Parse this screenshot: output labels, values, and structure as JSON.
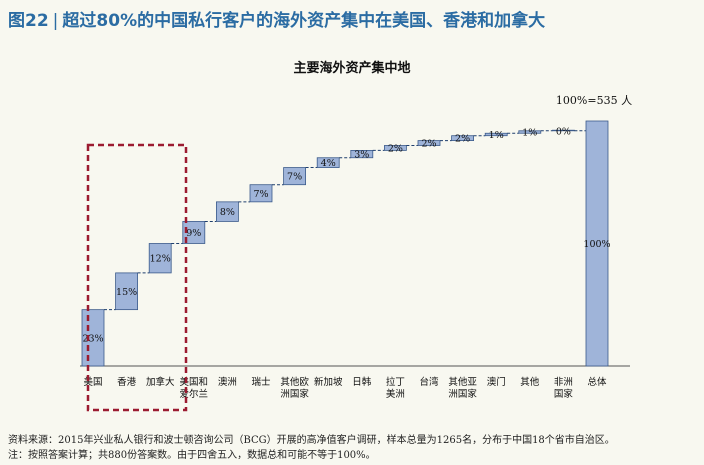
{
  "figure": {
    "number": "图22",
    "heading": "超过80%的中国私行客户的海外资产集中在美国、香港和加拿大"
  },
  "chart_data": {
    "type": "bar",
    "subtype": "waterfall",
    "title": "主要海外资产集中地",
    "total_label": "100%=535 人",
    "categories": [
      "美国",
      "香港",
      "加拿大",
      "美国和\n爱尔兰",
      "澳洲",
      "瑞士",
      "其他欧\n洲国家",
      "新加坡",
      "日韩",
      "拉丁\n美洲",
      "台湾",
      "其他亚\n洲国家",
      "澳门",
      "其他",
      "非洲\n国家",
      "总体"
    ],
    "values": [
      23,
      15,
      12,
      9,
      8,
      7,
      7,
      4,
      3,
      2,
      2,
      2,
      1,
      1,
      0,
      100
    ],
    "value_labels": [
      "23%",
      "15%",
      "12%",
      "9%",
      "8%",
      "7%",
      "7%",
      "4%",
      "3%",
      "2%",
      "2%",
      "2%",
      "1%",
      "1%",
      "0%",
      "100%"
    ],
    "ylim": [
      0,
      100
    ],
    "highlight": {
      "categories": [
        "美国",
        "香港",
        "加拿大"
      ],
      "style": "dashed-box",
      "color": "#9b1b30"
    },
    "bar_color": "#9fb4d9",
    "bar_stroke": "#3b5a8a"
  },
  "footer": {
    "source": "资料来源：2015年兴业私人银行和波士顿咨询公司（BCG）开展的高净值客户调研，样本总量为1265名，分布于中国18个省市自治区。",
    "note": "注：按照答案计算；共880份答案数。由于四舍五入，数据总和可能不等于100%。"
  }
}
